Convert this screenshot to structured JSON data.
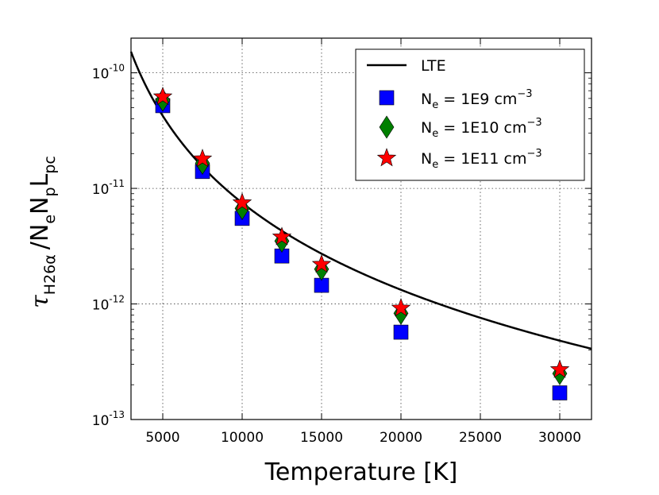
{
  "chart_data": {
    "type": "scatter",
    "xlabel": "Temperature [K]",
    "ylabel": {
      "symbol": "τ",
      "symbol_sub": "H26α",
      "rest": "/N",
      "n_sub_e": "e",
      "mid": "N",
      "n_sub_p": "p",
      "l": "L",
      "l_sub": "pc"
    },
    "xlim": [
      3000,
      32000
    ],
    "ylim_exponent": [
      -13,
      -9.7
    ],
    "yscale": "log",
    "grid": true,
    "x_ticks": [
      5000,
      10000,
      15000,
      20000,
      25000,
      30000
    ],
    "x_tick_labels": [
      "5000",
      "10000",
      "15000",
      "20000",
      "25000",
      "30000"
    ],
    "y_ticks": [
      {
        "base": "10",
        "exp": "-13",
        "value": 1e-13
      },
      {
        "base": "10",
        "exp": "-12",
        "value": 1e-12
      },
      {
        "base": "10",
        "exp": "-11",
        "value": 1e-11
      },
      {
        "base": "10",
        "exp": "-10",
        "value": 1e-10
      }
    ],
    "legend_position": "top-right",
    "lte_curve": {
      "name": "LTE",
      "reference_T": 10000,
      "reference_value": 7.5e-12,
      "power_law_index": -2.5,
      "color": "#000000"
    },
    "series": [
      {
        "name": "1E9",
        "legend_prefix": "N",
        "legend_sub": "e",
        "legend_mid": " = 1E9 cm",
        "legend_sup": "−3",
        "marker": "square",
        "color": "#0000ff",
        "x": [
          5000,
          7500,
          10000,
          12500,
          15000,
          20000,
          30000
        ],
        "y": [
          5.2e-11,
          1.4e-11,
          5.5e-12,
          2.6e-12,
          1.45e-12,
          5.7e-13,
          1.7e-13
        ]
      },
      {
        "name": "1E10",
        "legend_prefix": "N",
        "legend_sub": "e",
        "legend_mid": " = 1E10 cm",
        "legend_sup": "−3",
        "marker": "diamond",
        "color": "#007f00",
        "x": [
          5000,
          7500,
          10000,
          12500,
          15000,
          20000,
          30000
        ],
        "y": [
          5.8e-11,
          1.65e-11,
          6.7e-12,
          3.5e-12,
          2e-12,
          8.3e-13,
          2.5e-13
        ]
      },
      {
        "name": "1E11",
        "legend_prefix": "N",
        "legend_sub": "e",
        "legend_mid": " = 1E11 cm",
        "legend_sup": "−3",
        "marker": "star",
        "color": "#ff0000",
        "x": [
          5000,
          7500,
          10000,
          12500,
          15000,
          20000,
          30000
        ],
        "y": [
          6.2e-11,
          1.8e-11,
          7.5e-12,
          3.8e-12,
          2.2e-12,
          9.2e-13,
          2.7e-13
        ]
      }
    ]
  }
}
